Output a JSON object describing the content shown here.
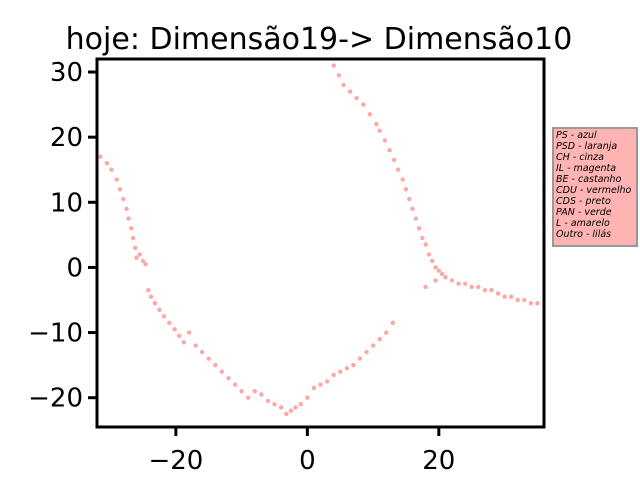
{
  "chart_data": {
    "type": "scatter",
    "title": "hoje: Dimensão19-> Dimensão10",
    "xlabel": "",
    "ylabel": "",
    "xlim": [
      -32,
      36
    ],
    "ylim": [
      -24.5,
      32
    ],
    "x_ticks": [
      -20,
      0,
      20
    ],
    "y_ticks": [
      30,
      20,
      10,
      0,
      -10,
      -20
    ],
    "x_tick_labels": [
      "−20",
      "0",
      "20"
    ],
    "y_tick_labels": [
      "30",
      "20",
      "10",
      "0",
      "−10",
      "−20"
    ],
    "grid": false,
    "point_color": "#ff3b3b",
    "legend": {
      "placement": "right",
      "background": "#ffb3b3",
      "border": "#999999",
      "entries": [
        "PS - azul",
        "PSD - laranja",
        "CH - cinza",
        "IL - magenta",
        "BE - castanho",
        "CDU - vermelho",
        "CDS - preto",
        "PAN - verde",
        "L - amarelo",
        "Outro - lilás"
      ]
    },
    "series": [
      {
        "color": "#ff3b3b",
        "x": [
          -31.5,
          -30.5,
          -29.8,
          -29.0,
          -28.5,
          -28.0,
          -27.5,
          -27.2,
          -26.8,
          -26.5,
          -26.2,
          -26.0,
          -25.5,
          -25.0,
          -24.6,
          -24.2,
          -23.8,
          -23.2,
          -22.5,
          -21.8,
          -21.0,
          -20.2,
          -19.5,
          -18.8,
          -18.0,
          -17.0,
          -16.0,
          -15.0,
          -14.0,
          -13.0,
          -12.0,
          -11.0,
          -10.0,
          -9.0,
          -8.0,
          -7.0,
          -6.0,
          -5.0,
          -4.0,
          -3.2,
          -2.5,
          -1.8,
          -1.0,
          0.0,
          1.0,
          2.0,
          3.0,
          4.0,
          5.0,
          6.0,
          7.0,
          8.0,
          9.0,
          10.0,
          11.0,
          12.0,
          13.0,
          4.0,
          4.8,
          5.5,
          6.5,
          7.5,
          8.5,
          9.5,
          10.5,
          11.0,
          11.8,
          12.5,
          13.2,
          13.8,
          14.5,
          15.0,
          15.5,
          16.0,
          16.5,
          17.0,
          17.5,
          18.0,
          18.5,
          19.0,
          19.5,
          20.0,
          20.5,
          21.0,
          22.0,
          23.0,
          24.0,
          25.0,
          26.0,
          27.0,
          28.0,
          29.0,
          30.0,
          31.0,
          32.0,
          33.0,
          34.0,
          35.0,
          18.0,
          19.5
        ],
        "y": [
          17.0,
          16.0,
          15.0,
          13.5,
          12.0,
          10.5,
          9.0,
          7.5,
          6.0,
          4.5,
          3.0,
          1.5,
          2.0,
          1.0,
          0.5,
          -3.5,
          -4.5,
          -5.5,
          -6.5,
          -7.5,
          -8.5,
          -9.5,
          -10.5,
          -11.5,
          -10.0,
          -12.0,
          -13.0,
          -14.0,
          -15.0,
          -16.0,
          -17.0,
          -18.0,
          -19.0,
          -20.0,
          -19.0,
          -19.5,
          -20.5,
          -21.0,
          -21.5,
          -22.5,
          -22.0,
          -21.5,
          -21.0,
          -20.0,
          -18.5,
          -18.0,
          -17.5,
          -16.5,
          -16.0,
          -15.5,
          -15.0,
          -14.0,
          -13.0,
          -12.0,
          -11.0,
          -10.0,
          -8.5,
          31.0,
          29.5,
          28.0,
          27.0,
          26.0,
          25.0,
          23.5,
          22.0,
          21.0,
          19.5,
          18.0,
          16.5,
          15.0,
          13.5,
          12.0,
          10.5,
          9.0,
          7.5,
          6.0,
          4.5,
          3.5,
          2.0,
          1.0,
          0.0,
          -0.5,
          -1.0,
          -1.5,
          -2.0,
          -2.5,
          -2.5,
          -3.0,
          -3.0,
          -3.5,
          -3.5,
          -4.0,
          -4.5,
          -4.5,
          -5.0,
          -5.0,
          -5.5,
          -5.5,
          -3.0,
          -2.0
        ]
      }
    ]
  }
}
